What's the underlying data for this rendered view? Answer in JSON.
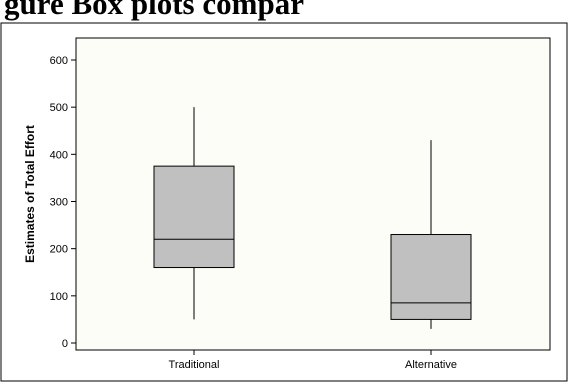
{
  "page_title": "gure      Box plots compar",
  "chart_data": {
    "type": "boxplot",
    "title": "",
    "xlabel": "",
    "ylabel": "Estimates of Total Effort",
    "ylim": [
      0,
      600
    ],
    "yticks": [
      0,
      100,
      200,
      300,
      400,
      500,
      600
    ],
    "grid": false,
    "colors": {
      "box_fill": "#c0c0c0",
      "stroke": "#000000",
      "frame_bg": "#fdfdf7"
    },
    "categories": [
      "Traditional",
      "Alternative"
    ],
    "boxes": [
      {
        "category": "Traditional",
        "min": 50,
        "q1": 160,
        "median": 220,
        "q3": 375,
        "max": 500
      },
      {
        "category": "Alternative",
        "min": 30,
        "q1": 50,
        "median": 85,
        "q3": 230,
        "max": 430
      }
    ]
  }
}
